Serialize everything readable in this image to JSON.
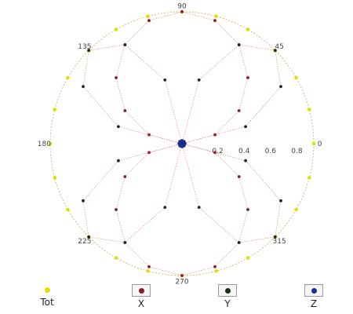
{
  "chart_data": {
    "type": "polar-scatter",
    "angle_unit": "degrees",
    "angle_labels": [
      "90",
      "45",
      "0",
      "315",
      "270",
      "225",
      "180",
      "135"
    ],
    "angle_label_values": [
      90,
      45,
      0,
      315,
      270,
      225,
      180,
      135
    ],
    "radial_tick_labels": [
      "0.2",
      "0.4",
      "0.6",
      "0.8"
    ],
    "radial_tick_values": [
      0.2,
      0.4,
      0.6,
      0.8
    ],
    "rlim": [
      0,
      1
    ],
    "grid": false,
    "legend_position": "bottom",
    "series": [
      {
        "name": "Tot",
        "color": "#e0e000",
        "boxed": false,
        "points": [
          [
            0,
            1
          ],
          [
            15,
            1
          ],
          [
            30,
            1
          ],
          [
            45,
            1
          ],
          [
            60,
            1
          ],
          [
            75,
            1
          ],
          [
            90,
            1
          ],
          [
            105,
            1
          ],
          [
            120,
            1
          ],
          [
            135,
            1
          ],
          [
            150,
            1
          ],
          [
            165,
            1
          ],
          [
            180,
            1
          ],
          [
            195,
            1
          ],
          [
            210,
            1
          ],
          [
            225,
            1
          ],
          [
            240,
            1
          ],
          [
            255,
            1
          ],
          [
            270,
            1
          ],
          [
            285,
            1
          ],
          [
            300,
            1
          ],
          [
            315,
            1
          ],
          [
            330,
            1
          ],
          [
            345,
            1
          ]
        ]
      },
      {
        "name": "X",
        "color": "#8b1a2b",
        "boxed": true,
        "points": [
          [
            0,
            0.0
          ],
          [
            15,
            0.259
          ],
          [
            30,
            0.5
          ],
          [
            45,
            0.707
          ],
          [
            60,
            0.866
          ],
          [
            75,
            0.966
          ],
          [
            90,
            1.0
          ],
          [
            105,
            0.966
          ],
          [
            120,
            0.866
          ],
          [
            135,
            0.707
          ],
          [
            150,
            0.5
          ],
          [
            165,
            0.259
          ],
          [
            180,
            0.0
          ],
          [
            195,
            0.259
          ],
          [
            210,
            0.5
          ],
          [
            225,
            0.707
          ],
          [
            240,
            0.866
          ],
          [
            255,
            0.966
          ],
          [
            270,
            1.0
          ],
          [
            285,
            0.966
          ],
          [
            300,
            0.866
          ],
          [
            315,
            0.707
          ],
          [
            330,
            0.5
          ],
          [
            345,
            0.259
          ]
        ]
      },
      {
        "name": "Y",
        "color": "#1f2a1f",
        "boxed": true,
        "points": [
          [
            0,
            0.0
          ],
          [
            15,
            0.5
          ],
          [
            30,
            0.866
          ],
          [
            45,
            1.0
          ],
          [
            60,
            0.866
          ],
          [
            75,
            0.5
          ],
          [
            90,
            0.0
          ],
          [
            105,
            0.5
          ],
          [
            120,
            0.866
          ],
          [
            135,
            1.0
          ],
          [
            150,
            0.866
          ],
          [
            165,
            0.5
          ],
          [
            180,
            0.0
          ],
          [
            195,
            0.5
          ],
          [
            210,
            0.866
          ],
          [
            225,
            1.0
          ],
          [
            240,
            0.866
          ],
          [
            255,
            0.5
          ],
          [
            270,
            0.0
          ],
          [
            285,
            0.5
          ],
          [
            300,
            0.866
          ],
          [
            315,
            1.0
          ],
          [
            330,
            0.866
          ],
          [
            345,
            0.5
          ]
        ]
      },
      {
        "name": "Z",
        "color": "#1a2f8f",
        "boxed": true,
        "points": [
          [
            0,
            0.02
          ],
          [
            45,
            0.02
          ],
          [
            90,
            0.02
          ],
          [
            135,
            0.02
          ],
          [
            180,
            0.02
          ],
          [
            225,
            0.02
          ],
          [
            270,
            0.02
          ],
          [
            315,
            0.02
          ]
        ]
      }
    ]
  }
}
